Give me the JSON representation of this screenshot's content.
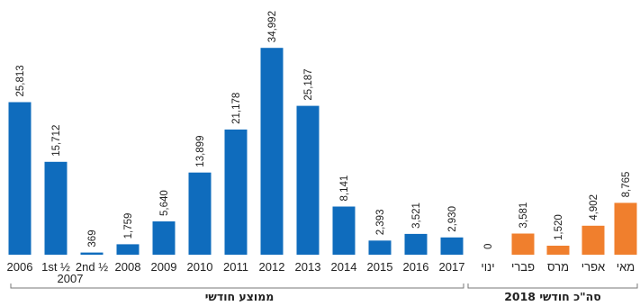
{
  "chart_data": {
    "type": "bar",
    "ylim": [
      0,
      37000
    ],
    "groups": [
      {
        "label": "ממוצע חודשי",
        "color": "#0f6cbd",
        "bars": [
          {
            "tick": "2006",
            "value": 25813,
            "label": "25,813"
          },
          {
            "tick": "1st ½",
            "value": 15712,
            "label": "15,712"
          },
          {
            "tick": "2nd ½",
            "value": 369,
            "label": "369"
          },
          {
            "tick": "2008",
            "value": 1759,
            "label": "1,759"
          },
          {
            "tick": "2009",
            "value": 5640,
            "label": "5,640"
          },
          {
            "tick": "2010",
            "value": 13899,
            "label": "13,899"
          },
          {
            "tick": "2011",
            "value": 21178,
            "label": "21,178"
          },
          {
            "tick": "2012",
            "value": 34992,
            "label": "34,992"
          },
          {
            "tick": "2013",
            "value": 25187,
            "label": "25,187"
          },
          {
            "tick": "2014",
            "value": 8141,
            "label": "8,141"
          },
          {
            "tick": "2015",
            "value": 2393,
            "label": "2,393"
          },
          {
            "tick": "2016",
            "value": 3521,
            "label": "3,521"
          },
          {
            "tick": "2017",
            "value": 2930,
            "label": "2,930"
          }
        ],
        "sublabel": "2007"
      },
      {
        "label": "סה\"כ חודשי 2018",
        "color": "#f07f2d",
        "bars": [
          {
            "tick": "ינוי",
            "value": 0,
            "label": "0"
          },
          {
            "tick": "פברי",
            "value": 3581,
            "label": "3,581"
          },
          {
            "tick": "מרס",
            "value": 1520,
            "label": "1,520"
          },
          {
            "tick": "אפרי",
            "value": 4902,
            "label": "4,902"
          },
          {
            "tick": "מאי",
            "value": 8765,
            "label": "8,765"
          }
        ]
      }
    ]
  }
}
